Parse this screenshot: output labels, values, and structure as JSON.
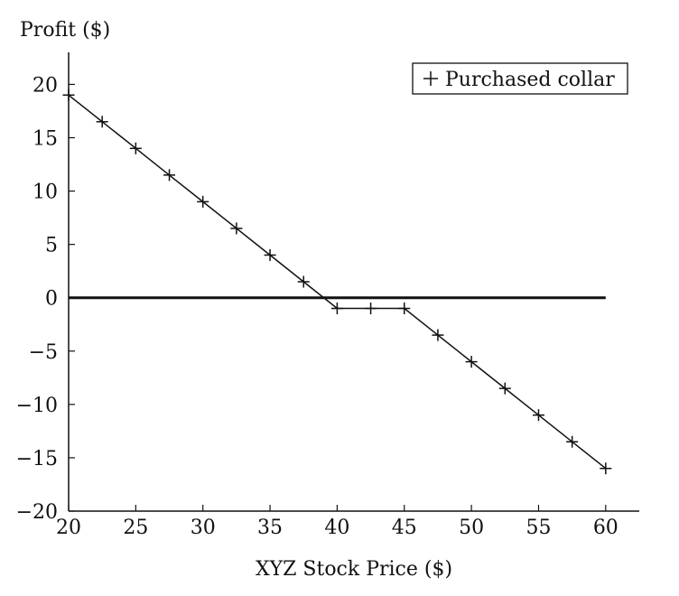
{
  "chart_data": {
    "type": "line",
    "title": "",
    "xlabel": "XYZ Stock Price ($)",
    "ylabel": "Profit ($)",
    "xlim": [
      20,
      62.5
    ],
    "ylim": [
      -20,
      23
    ],
    "xticks": [
      20,
      25,
      30,
      35,
      40,
      45,
      50,
      55,
      60
    ],
    "yticks": [
      20,
      15,
      10,
      5,
      0,
      -5,
      -10,
      -15,
      -20
    ],
    "xtick_labels": [
      "20",
      "25",
      "30",
      "35",
      "40",
      "45",
      "50",
      "55",
      "60"
    ],
    "ytick_labels": [
      "20",
      "15",
      "10",
      "5",
      "0",
      "−5",
      "−10",
      "−15",
      "−20"
    ],
    "zero_line": true,
    "grid": false,
    "legend_position": "top-right",
    "series": [
      {
        "name": "Purchased collar",
        "marker": "+",
        "color": "#111111",
        "x": [
          20,
          22.5,
          25,
          27.5,
          30,
          32.5,
          35,
          37.5,
          40,
          42.5,
          45,
          47.5,
          50,
          52.5,
          55,
          57.5,
          60
        ],
        "y": [
          19,
          16.5,
          14,
          11.5,
          9,
          6.5,
          4,
          1.5,
          -1,
          -1,
          -1,
          -3.5,
          -6,
          -8.5,
          -11,
          -13.5,
          -16
        ]
      }
    ]
  }
}
